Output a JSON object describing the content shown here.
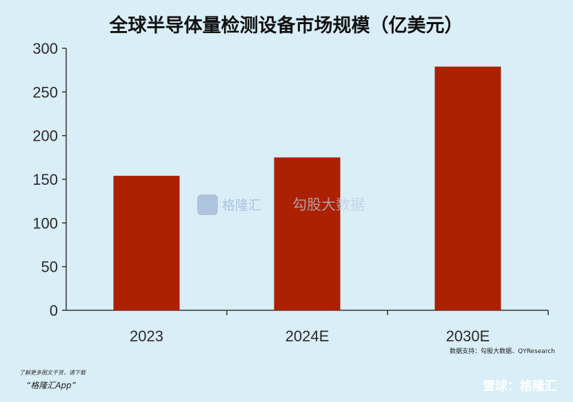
{
  "chart_data": {
    "type": "bar",
    "title": "全球半导体量检测设备市场规模（亿美元）",
    "categories": [
      "2023",
      "2024E",
      "2030E"
    ],
    "values": [
      154,
      175,
      279
    ],
    "ylim": [
      0,
      300
    ],
    "yticks": [
      0,
      50,
      100,
      150,
      200,
      250,
      300
    ],
    "xlabel": "",
    "ylabel": "",
    "grid": false,
    "bar_color": "#ab2100"
  },
  "source_note": "数据支持：勾股大数据、QYResearch",
  "promo": {
    "line1": "了解更多图文干货，请下载",
    "line2": "“格隆汇App”"
  },
  "watermark": {
    "brand1": "格隆汇",
    "brand2": "勾股大数据",
    "snowball": "雪球：格隆汇"
  },
  "colors": {
    "background": "#d9eef7",
    "bar": "#ab2100"
  }
}
